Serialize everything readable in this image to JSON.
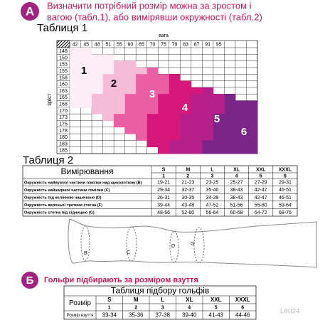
{
  "section_a": {
    "badge": "A",
    "heading": [
      "Визначити потрібний розмір можна за зростом і",
      "вагою (табл.1), або вимірявши окружності (табл.2)"
    ]
  },
  "table1": {
    "title": "Таблиця 1",
    "x_label": "вага",
    "y_label": "зріст",
    "weights": [
      42,
      45,
      48,
      51,
      55,
      60,
      65,
      70,
      75,
      79,
      83,
      87,
      91,
      95
    ],
    "heights": [
      148,
      150,
      153,
      155,
      158,
      160,
      163,
      165,
      168,
      170,
      173,
      175,
      178,
      180,
      183,
      185
    ],
    "zones": [
      "1",
      "2",
      "3",
      "4",
      "5",
      "6"
    ]
  },
  "table2": {
    "title": "Таблиця 2",
    "header": "Вимірювання",
    "sizes": [
      "S",
      "M",
      "L",
      "XL",
      "XXL",
      "XXXL"
    ],
    "size_numbers": [
      1,
      2,
      3,
      4,
      5,
      6
    ],
    "rows": [
      {
        "label": "Окружність найвужчої частини гомілки над щиколоткою (B)",
        "values": [
          "19-21",
          "21-23",
          "23-25",
          "25-27",
          "27-29",
          "29-31"
        ]
      },
      {
        "label": "Окружність найширшої частини гомілки (C)",
        "values": [
          "29-34",
          "32-37",
          "35-40",
          "38-43",
          "42-47",
          "46-51"
        ]
      },
      {
        "label": "Окружність під колінною чашечкою (D)",
        "values": [
          "26-31",
          "30-35",
          "34-39",
          "38-43",
          "42-47",
          "46-51"
        ]
      },
      {
        "label": "Окружність верхньої третини стегна (F)",
        "values": [
          "39-44",
          "43-48",
          "47-52",
          "51-56",
          "55-60",
          "59-64"
        ]
      },
      {
        "label": "Окружність стегна під сідницею (G)",
        "values": [
          "48-56",
          "52-60",
          "56-64",
          "60-68",
          "64-72",
          "68-76"
        ]
      }
    ]
  },
  "diagram": {
    "labels": [
      "B",
      "C",
      "D",
      "G"
    ]
  },
  "section_b": {
    "badge": "Б",
    "heading": "Гольфи підбирають за розміром взуття",
    "table": {
      "title": "Таблиця підбору гольфів",
      "row_label": "Розмір",
      "sizes": [
        "S",
        "M",
        "L",
        "XL",
        "XXL",
        "XXXL"
      ],
      "size_numbers": [
        1,
        2,
        3,
        4,
        5,
        6
      ],
      "shoe_label": "Розмір взуття",
      "shoe_sizes": [
        "33-34",
        "35-36",
        "37-38",
        "39-40",
        "41-43",
        "44-46"
      ]
    }
  },
  "watermark": "LIKI24"
}
